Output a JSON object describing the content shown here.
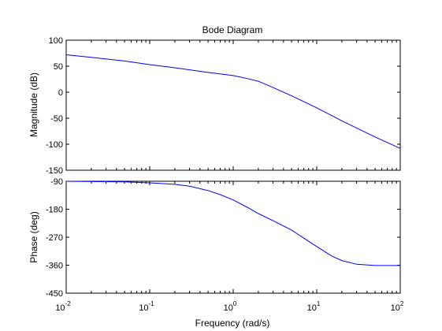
{
  "chart_data": {
    "type": "line",
    "title": "Bode Diagram",
    "xlabel": "Frequency  (rad/s)",
    "x_scale": "log",
    "xlim": [
      0.01,
      100
    ],
    "x_ticks": [
      0.01,
      0.1,
      1,
      10,
      100
    ],
    "x_tick_labels": [
      {
        "base": "10",
        "exp": "-2"
      },
      {
        "base": "10",
        "exp": "-1"
      },
      {
        "base": "10",
        "exp": "0"
      },
      {
        "base": "10",
        "exp": "1"
      },
      {
        "base": "10",
        "exp": "2"
      }
    ],
    "line_color": "#0000ff",
    "grid": false,
    "panels": [
      {
        "id": "magnitude",
        "ylabel": "Magnitude (dB)",
        "ylim": [
          -150,
          100
        ],
        "y_ticks": [
          100,
          50,
          0,
          -50,
          -100,
          -150
        ],
        "y_tick_labels": [
          "100",
          "50",
          "0",
          "-50",
          "-100",
          "-150"
        ],
        "series": [
          {
            "x": [
              0.01,
              0.02,
              0.05,
              0.1,
              0.2,
              0.5,
              1,
              1.5,
              2,
              3,
              5,
              7,
              10,
              20,
              50,
              100
            ],
            "y": [
              72,
              67,
              60,
              53,
              47,
              38,
              32,
              26,
              21,
              9,
              -7,
              -18,
              -30,
              -55,
              -86,
              -108
            ]
          }
        ]
      },
      {
        "id": "phase",
        "ylabel": "Phase (deg)",
        "ylim": [
          -450,
          -90
        ],
        "y_ticks": [
          -90,
          -180,
          -270,
          -360,
          -450
        ],
        "y_tick_labels": [
          "-90",
          "-180",
          "-270",
          "-360",
          "-450"
        ],
        "series": [
          {
            "x": [
              0.01,
              0.05,
              0.1,
              0.2,
              0.3,
              0.5,
              0.7,
              1,
              1.5,
              2,
              3,
              5,
              7,
              10,
              15,
              20,
              30,
              50,
              100
            ],
            "y": [
              -90,
              -92,
              -95,
              -100,
              -106,
              -120,
              -133,
              -150,
              -175,
              -194,
              -217,
              -247,
              -273,
              -300,
              -330,
              -345,
              -357,
              -361,
              -361
            ]
          }
        ]
      }
    ]
  }
}
